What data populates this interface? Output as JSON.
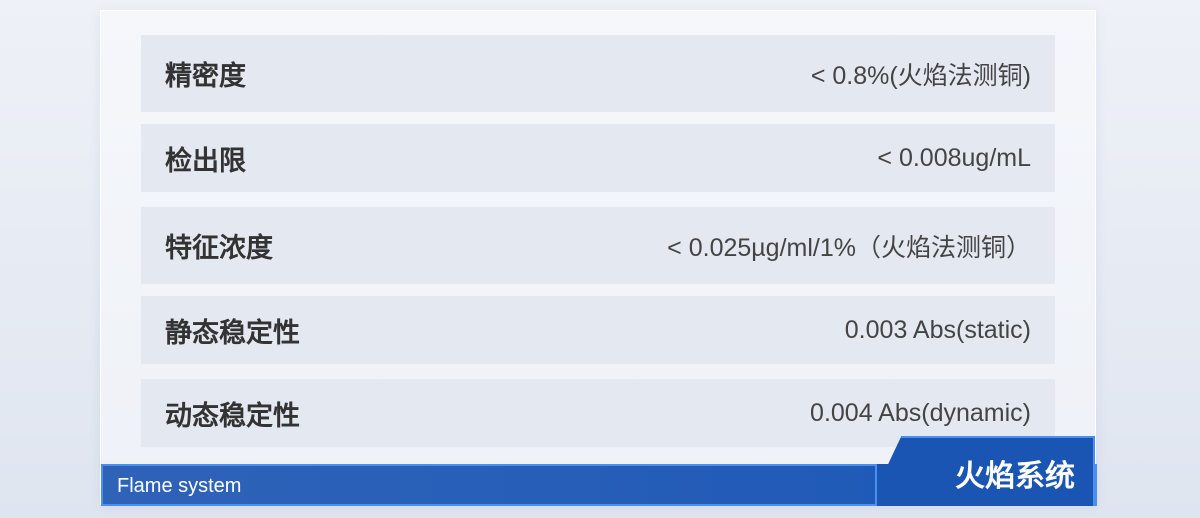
{
  "specs": [
    {
      "label": "精密度",
      "value": "< 0.8%(火焰法测铜)"
    },
    {
      "label": "检出限",
      "value": "< 0.008ug/mL"
    },
    {
      "label": "特征浓度",
      "value": "< 0.025µg/ml/1%（火焰法测铜）"
    },
    {
      "label": "静态稳定性",
      "value": "0.003 Abs(static)"
    },
    {
      "label": "动态稳定性",
      "value": "0.004 Abs(dynamic)"
    }
  ],
  "footer": {
    "english": "Flame system",
    "title": "火焰系统"
  },
  "colors": {
    "accent": "#1a55b3",
    "border": "#4a90f0",
    "row_bg": "#e3e8f1"
  }
}
